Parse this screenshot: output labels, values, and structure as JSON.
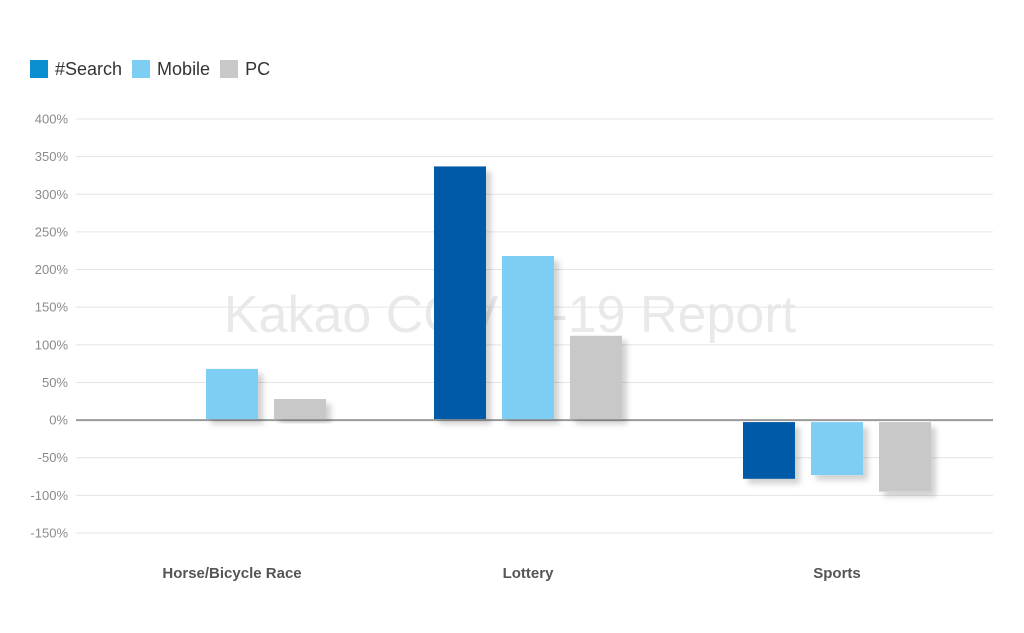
{
  "watermark": "Kakao COVID-19 Report",
  "legend": [
    {
      "label": "#Search",
      "color": "#0b8fd0"
    },
    {
      "label": "Mobile",
      "color": "#7ecdf2"
    },
    {
      "label": "PC",
      "color": "#c8c8c8"
    }
  ],
  "chart_data": {
    "type": "bar",
    "categories": [
      "Horse/Bicycle Race",
      "Lottery",
      "Sports"
    ],
    "series": [
      {
        "name": "#Search",
        "color": "#005aa7",
        "values": [
          0,
          337,
          -78
        ]
      },
      {
        "name": "Mobile",
        "color": "#7ecdf2",
        "values": [
          68,
          218,
          -73
        ]
      },
      {
        "name": "PC",
        "color": "#c8c8c8",
        "values": [
          28,
          112,
          -95
        ]
      }
    ],
    "ylim": [
      -150,
      400
    ],
    "yticks": [
      400,
      350,
      300,
      250,
      200,
      150,
      100,
      50,
      0,
      -50,
      -100,
      -150
    ],
    "ytick_labels": [
      "400%",
      "350%",
      "300%",
      "250%",
      "200%",
      "150%",
      "100%",
      "50%",
      "0%",
      "-50%",
      "-100%",
      "-150%"
    ],
    "grid": true,
    "legend_position": "top-left"
  }
}
